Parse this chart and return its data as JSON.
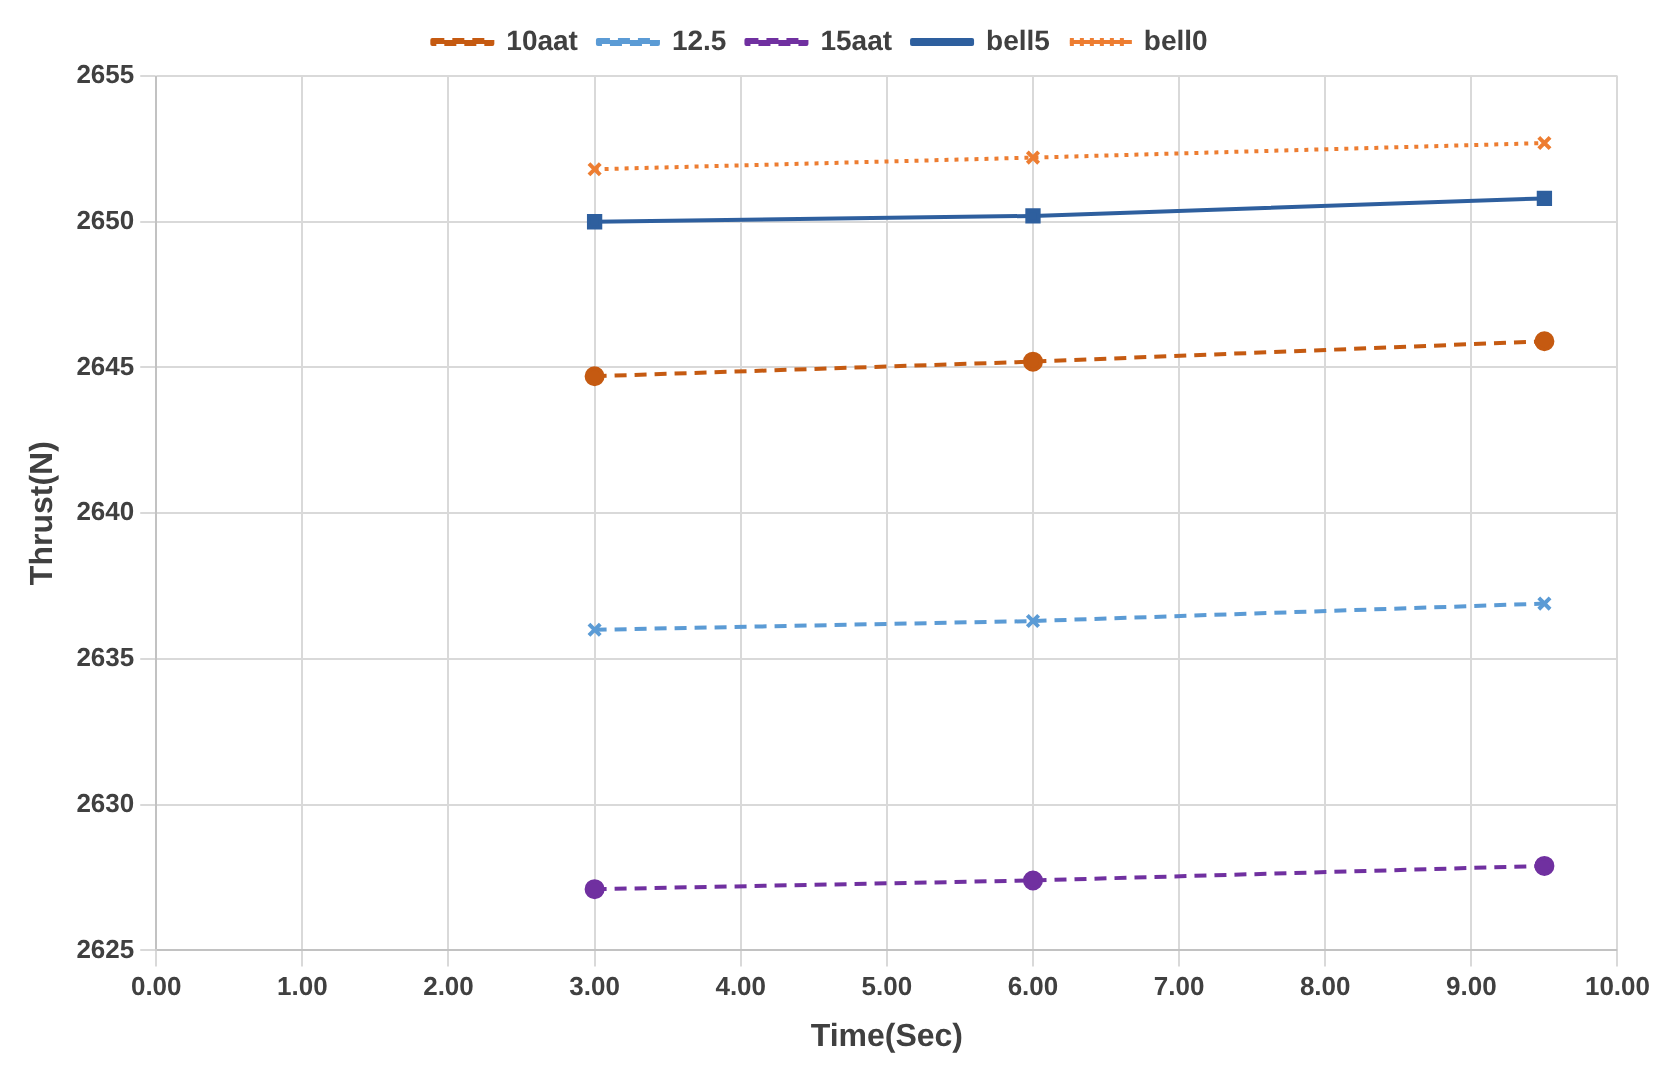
{
  "chart_data": {
    "type": "line",
    "xlabel": "Time(Sec)",
    "ylabel": "Thrust(N)",
    "xlim": [
      0,
      10
    ],
    "xticks": [
      {
        "value": 0,
        "label": "0.00"
      },
      {
        "value": 1,
        "label": "1.00"
      },
      {
        "value": 2,
        "label": "2.00"
      },
      {
        "value": 3,
        "label": "3.00"
      },
      {
        "value": 4,
        "label": "4.00"
      },
      {
        "value": 5,
        "label": "5.00"
      },
      {
        "value": 6,
        "label": "6.00"
      },
      {
        "value": 7,
        "label": "7.00"
      },
      {
        "value": 8,
        "label": "8.00"
      },
      {
        "value": 9,
        "label": "9.00"
      },
      {
        "value": 10,
        "label": "10.00"
      }
    ],
    "ylim": [
      2625,
      2655
    ],
    "yticks": [
      2625,
      2630,
      2635,
      2640,
      2645,
      2650,
      2655
    ],
    "grid": true,
    "legend": "top",
    "series": [
      {
        "name": "10aat",
        "color": "#c55a11",
        "x": [
          3,
          6,
          9.5
        ],
        "values": [
          2644.7,
          2645.2,
          2645.9
        ],
        "marker": "circle",
        "line_style": "dashed"
      },
      {
        "name": "12.5",
        "color": "#5b9bd5",
        "x": [
          3,
          6,
          9.5
        ],
        "values": [
          2636.0,
          2636.3,
          2636.9
        ],
        "marker": "cross",
        "line_style": "dashed"
      },
      {
        "name": "15aat",
        "color": "#7030a0",
        "x": [
          3,
          6,
          9.5
        ],
        "values": [
          2627.1,
          2627.4,
          2627.9
        ],
        "marker": "circle",
        "line_style": "dashed"
      },
      {
        "name": "bell5",
        "color": "#2e5f9e",
        "x": [
          3,
          6,
          9.5
        ],
        "values": [
          2650.0,
          2650.2,
          2650.8
        ],
        "marker": "square",
        "line_style": "solid"
      },
      {
        "name": "bell0",
        "color": "#ed7d31",
        "x": [
          3,
          6,
          9.5
        ],
        "values": [
          2651.8,
          2652.2,
          2652.7
        ],
        "marker": "cross",
        "line_style": "dotted"
      }
    ]
  }
}
